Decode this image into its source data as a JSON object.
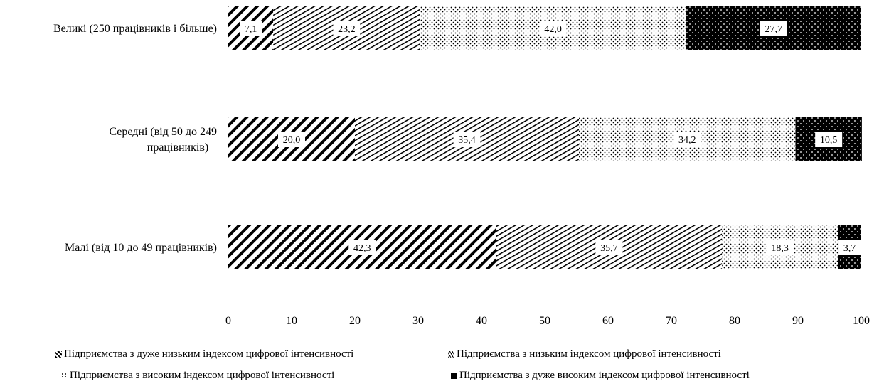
{
  "chart_data": {
    "type": "bar",
    "stacked": true,
    "orientation": "horizontal",
    "categories": [
      "Великі (250 працівників і більше)",
      "Середні (від 50 до 249 працівників)",
      "Малі (від 10 до 49 працівників)"
    ],
    "category_lines": [
      [
        "Великі (250 працівників і більше)"
      ],
      [
        "Середні (від 50 до 249",
        "працівників)"
      ],
      [
        "Малі (від 10 до 49 працівників)"
      ]
    ],
    "series": [
      {
        "name": "Підприємства з дуже низьким індексом цифрової інтенсивності",
        "values": [
          7.1,
          20.0,
          42.3
        ],
        "labels": [
          "7,1",
          "20,0",
          "42,3"
        ],
        "pattern": "hatch-heavy"
      },
      {
        "name": "Підприємства з низьким індексом цифрової інтенсивності",
        "values": [
          23.2,
          35.4,
          35.7
        ],
        "labels": [
          "23,2",
          "35,4",
          "35,7"
        ],
        "pattern": "hatch-light"
      },
      {
        "name": "Підприємства з високим індексом цифрової інтенсивності",
        "values": [
          42.0,
          34.2,
          18.3
        ],
        "labels": [
          "42,0",
          "34,2",
          "18,3"
        ],
        "pattern": "dots"
      },
      {
        "name": "Підприємства з дуже високим індексом цифрової інтенсивності",
        "values": [
          27.7,
          10.5,
          3.7
        ],
        "labels": [
          "27,7",
          "10,5",
          "3,7"
        ],
        "pattern": "dark-dots"
      }
    ],
    "xlim": [
      0,
      100
    ],
    "xticks": [
      0,
      10,
      20,
      30,
      40,
      50,
      60,
      70,
      80,
      90,
      100
    ],
    "xlabel": "",
    "ylabel": "",
    "title": "",
    "grid": false,
    "legend_position": "bottom"
  }
}
